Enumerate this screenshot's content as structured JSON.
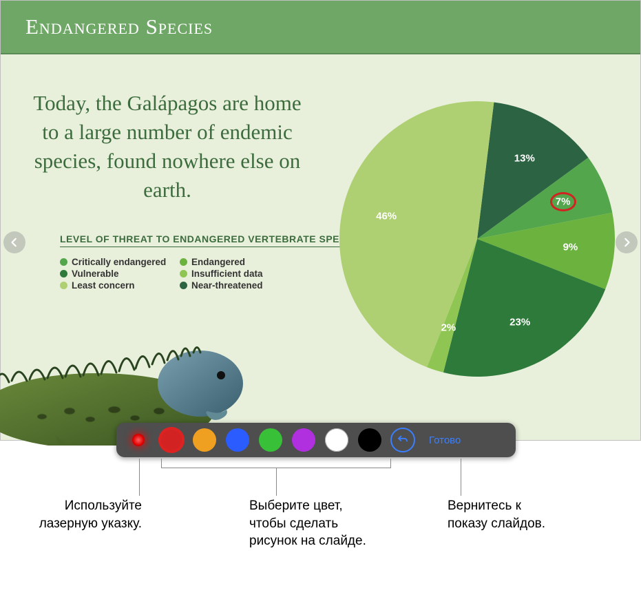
{
  "header": {
    "title": "Endangered Species"
  },
  "body_text": "Today, the Galápagos are home to a large number of endemic species, found nowhere else on earth.",
  "legend_title": "LEVEL OF THREAT TO ENDANGERED VERTEBRATE SPECIES",
  "legend": [
    {
      "label": "Critically endangered",
      "color": "#53a64c"
    },
    {
      "label": "Endangered",
      "color": "#6bb23f"
    },
    {
      "label": "Vulnerable",
      "color": "#2d7a3a"
    },
    {
      "label": "Insufficient data",
      "color": "#8fc653"
    },
    {
      "label": "Least concern",
      "color": "#aed072"
    },
    {
      "label": "Near-threatened",
      "color": "#2c6443"
    }
  ],
  "pie": {
    "type": "pie",
    "radius": 200,
    "label_fontsize": 15,
    "label_color": "#ffffff",
    "slices": [
      {
        "label": "13%",
        "value": 13,
        "color": "#2c6443"
      },
      {
        "label": "7%",
        "value": 7,
        "color": "#53a64c"
      },
      {
        "label": "9%",
        "value": 9,
        "color": "#6bb23f"
      },
      {
        "label": "23%",
        "value": 23,
        "color": "#2d7a3a"
      },
      {
        "label": "2%",
        "value": 2,
        "color": "#8fc653"
      },
      {
        "label": "46%",
        "value": 46,
        "color": "#aed072"
      }
    ],
    "start_angle_deg": -83,
    "annotation_on_slice": 1,
    "annotation_color": "#d22222"
  },
  "toolbar": {
    "background": "#4e4e4e",
    "laser_tooltip": "laser-pointer",
    "colors": [
      {
        "hex": "#d22222",
        "selected": true
      },
      {
        "hex": "#f0a020"
      },
      {
        "hex": "#2a5cff"
      },
      {
        "hex": "#38c038"
      },
      {
        "hex": "#b030e0"
      },
      {
        "hex": "#ffffff"
      },
      {
        "hex": "#000000"
      }
    ],
    "done_label": "Готово"
  },
  "callouts": {
    "laser": "Используйте лазерную указку.",
    "color": "Выберите цвет, чтобы сделать рисунок на слайде.",
    "done": "Вернитесь к показу слайдов."
  }
}
